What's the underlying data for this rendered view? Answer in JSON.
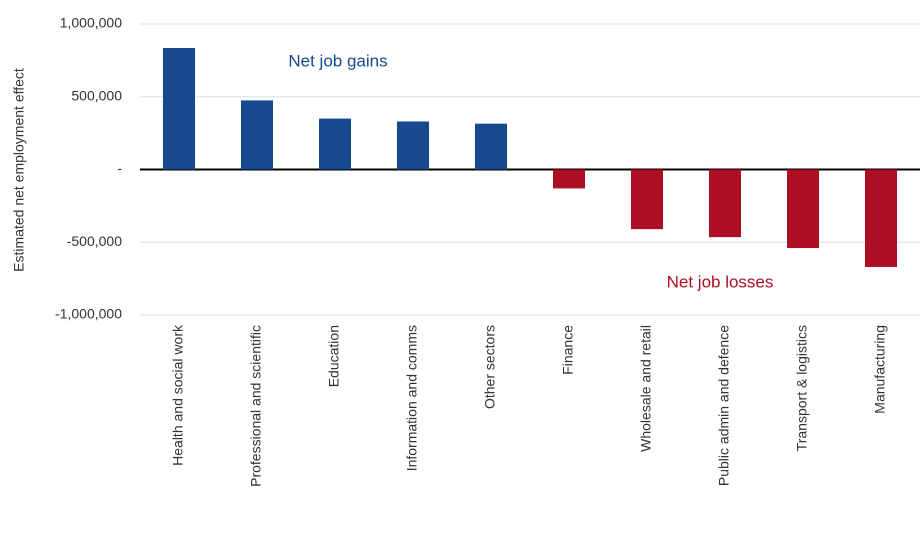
{
  "chart_data": {
    "type": "bar",
    "y_label": "Estimated net employment effect",
    "categories": [
      "Health and social work",
      "Professional and scientific",
      "Education",
      "Information and comms",
      "Other sectors",
      "Finance",
      "Wholesale and retail",
      "Public admin and defence",
      "Transport & logistics",
      "Manufacturing"
    ],
    "values": [
      835000,
      475000,
      350000,
      330000,
      315000,
      -130000,
      -410000,
      -465000,
      -540000,
      -670000
    ],
    "colors": [
      "#174a8d",
      "#174a8d",
      "#174a8d",
      "#174a8d",
      "#174a8d",
      "#ad0f24",
      "#ad0f24",
      "#ad0f24",
      "#ad0f24",
      "#ad0f24"
    ],
    "ylim": [
      -1000000,
      1000000
    ],
    "yticks": [
      {
        "value": 1000000,
        "label": "1,000,000"
      },
      {
        "value": 500000,
        "label": "500,000"
      },
      {
        "value": 0,
        "label": "-"
      },
      {
        "value": -500000,
        "label": "-500,000"
      },
      {
        "value": -1000000,
        "label": "-1,000,000"
      }
    ],
    "grid": true,
    "annotations": [
      {
        "text": "Net job gains",
        "color": "#174a8d"
      },
      {
        "text": "Net job losses",
        "color": "#ad0f24"
      }
    ]
  }
}
